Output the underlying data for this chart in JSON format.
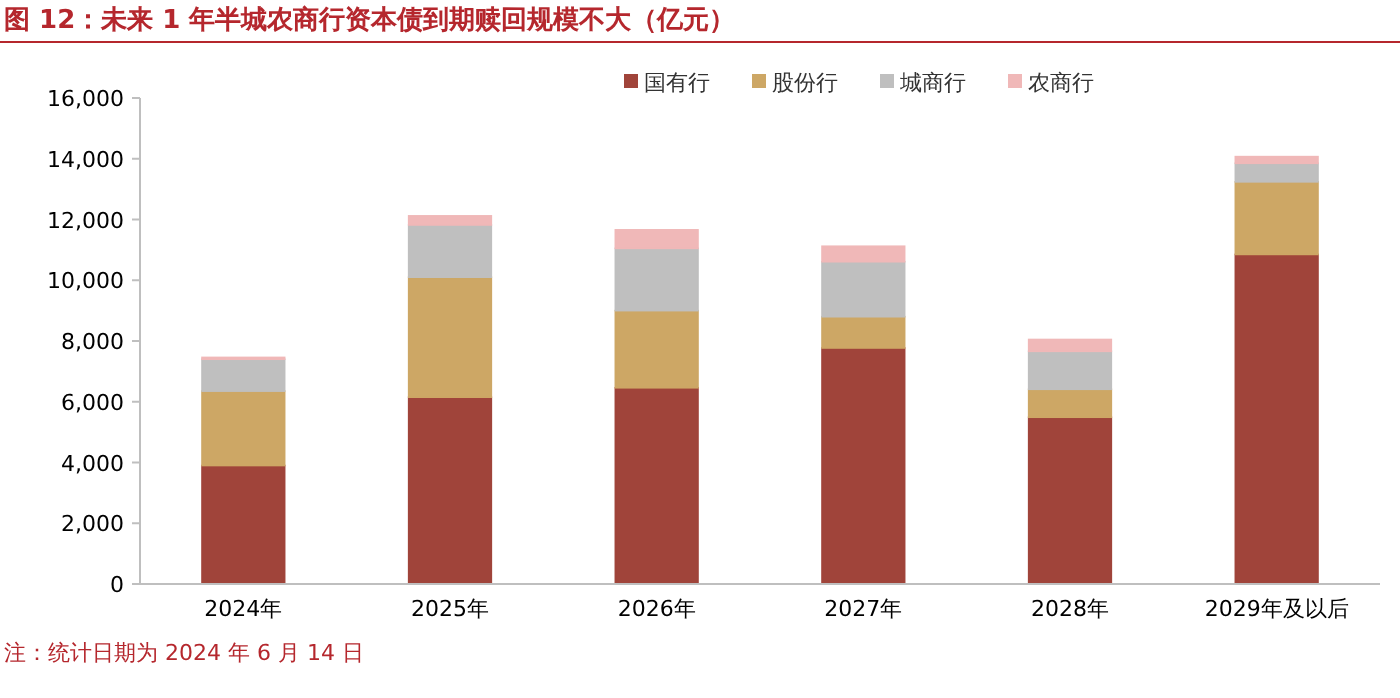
{
  "chart_data": {
    "type": "bar",
    "title": "图 12：未来 1 年半城农商行资本债到期赎回规模不大（亿元）",
    "stacked": true,
    "legend": "top",
    "categories": [
      "2024年",
      "2025年",
      "2026年",
      "2027年",
      "2028年",
      "2029年及以后"
    ],
    "series": [
      {
        "name": "国有行",
        "color": "#a0443a",
        "values": [
          3900,
          6150,
          6460,
          7770,
          5490,
          10850
        ]
      },
      {
        "name": "股份行",
        "color": "#cda765",
        "values": [
          2450,
          3950,
          2540,
          1030,
          920,
          2390
        ]
      },
      {
        "name": "城商行",
        "color": "#bfbfbf",
        "values": [
          1050,
          1720,
          2050,
          1810,
          1250,
          610
        ]
      },
      {
        "name": "农商行",
        "color": "#f0b8b8",
        "values": [
          60,
          300,
          610,
          510,
          390,
          220
        ]
      }
    ],
    "ylim": [
      0,
      16000
    ],
    "yticks": [
      0,
      {
        "value": 2000,
        "label": "2,000"
      },
      {
        "value": 4000,
        "label": "4,000"
      },
      {
        "value": 6000,
        "label": "6,000"
      },
      {
        "value": 8000,
        "label": "8,000"
      },
      {
        "value": 10000,
        "label": "10,000"
      },
      {
        "value": 12000,
        "label": "12,000"
      },
      {
        "value": 14000,
        "label": "14,000"
      },
      {
        "value": 16000,
        "label": "16,000"
      }
    ],
    "annotations": [
      "注：统计日期为 2024 年 6 月 14 日"
    ]
  }
}
